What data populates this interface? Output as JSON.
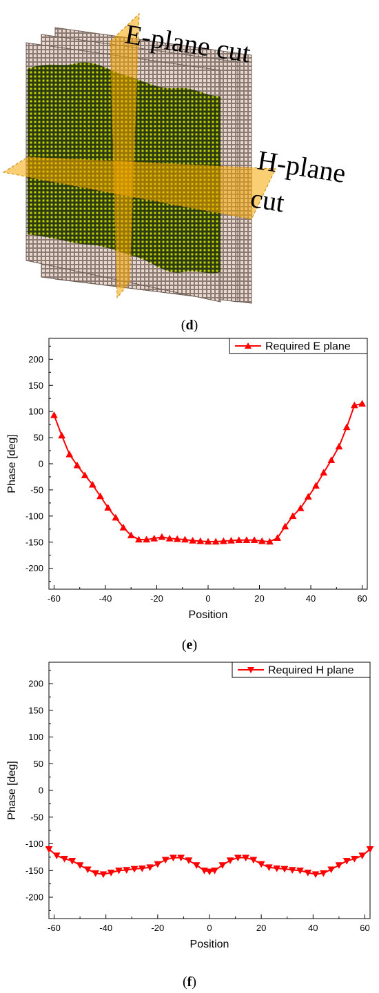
{
  "panel_d": {
    "caption_letter": "d",
    "e_plane_label": "E-plane cut",
    "h_plane_label_line1": "H-plane",
    "h_plane_label_line2": "cut",
    "colors": {
      "pattern_fill": "#2b3a10",
      "pattern_element": "#c8d400",
      "pattern_edge": "#a08a80",
      "cut_plane": "#f5a800"
    }
  },
  "chart_data": [
    {
      "type": "line",
      "caption_letter": "e",
      "title": "",
      "xlabel": "Position",
      "ylabel": "Phase [deg]",
      "xlim": [
        -62,
        62
      ],
      "ylim": [
        -240,
        240
      ],
      "xticks": [
        -60,
        -40,
        -20,
        0,
        20,
        40,
        60
      ],
      "yticks": [
        200,
        150,
        100,
        50,
        0,
        -50,
        -100,
        -150,
        -200
      ],
      "grid": false,
      "legend_position": "top-right",
      "marker": "triangle-up",
      "color": "#ff0000",
      "series": [
        {
          "name": "Required E plane",
          "x": [
            -60,
            -57,
            -54,
            -51,
            -48,
            -45,
            -42,
            -39,
            -36,
            -33,
            -30,
            -27,
            -24,
            -21,
            -18,
            -15,
            -12,
            -9,
            -6,
            -3,
            0,
            3,
            6,
            9,
            12,
            15,
            18,
            21,
            24,
            27,
            30,
            33,
            36,
            39,
            42,
            45,
            48,
            51,
            54,
            57,
            60
          ],
          "y": [
            93,
            54,
            18,
            -3,
            -22,
            -40,
            -62,
            -84,
            -103,
            -122,
            -137,
            -145,
            -145,
            -143,
            -140,
            -143,
            -144,
            -145,
            -147,
            -148,
            -149,
            -149,
            -148,
            -147,
            -146,
            -146,
            -146,
            -148,
            -149,
            -142,
            -120,
            -100,
            -85,
            -63,
            -42,
            -17,
            7,
            33,
            70,
            112,
            115
          ]
        }
      ]
    },
    {
      "type": "line",
      "caption_letter": "f",
      "title": "",
      "xlabel": "Position",
      "ylabel": "Phase [deg]",
      "xlim": [
        -62,
        62
      ],
      "ylim": [
        -240,
        240
      ],
      "xticks": [
        -60,
        -40,
        -20,
        0,
        20,
        40,
        60
      ],
      "yticks": [
        200,
        150,
        100,
        50,
        0,
        -50,
        -100,
        -150,
        -200
      ],
      "grid": false,
      "legend_position": "top-right",
      "marker": "triangle-down",
      "color": "#ff0000",
      "series": [
        {
          "name": "Required H plane",
          "x": [
            -62,
            -59,
            -56,
            -53,
            -50,
            -47,
            -44,
            -41,
            -38,
            -35,
            -32,
            -29,
            -26,
            -23,
            -20,
            -17,
            -14,
            -11,
            -8,
            -5,
            -2,
            0,
            2,
            5,
            8,
            11,
            14,
            17,
            20,
            23,
            26,
            29,
            32,
            35,
            38,
            41,
            44,
            47,
            50,
            53,
            56,
            59,
            62
          ],
          "y": [
            -110,
            -122,
            -128,
            -132,
            -140,
            -148,
            -155,
            -157,
            -154,
            -150,
            -149,
            -147,
            -146,
            -144,
            -138,
            -130,
            -126,
            -126,
            -131,
            -140,
            -150,
            -152,
            -150,
            -140,
            -131,
            -126,
            -126,
            -130,
            -138,
            -144,
            -146,
            -147,
            -149,
            -150,
            -154,
            -157,
            -155,
            -148,
            -140,
            -132,
            -128,
            -122,
            -110
          ]
        }
      ]
    }
  ]
}
